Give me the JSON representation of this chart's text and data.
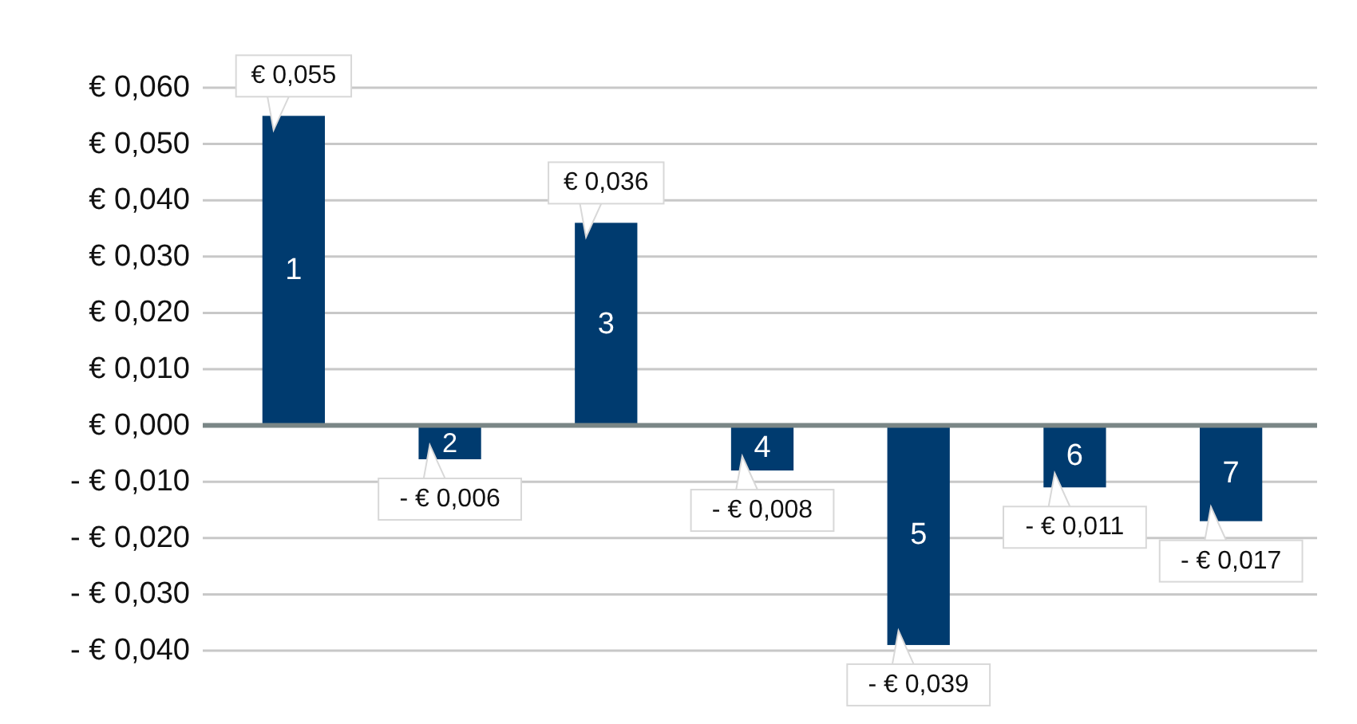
{
  "chart_data": {
    "type": "bar",
    "categories": [
      "1",
      "2",
      "3",
      "4",
      "5",
      "6",
      "7"
    ],
    "values": [
      0.055,
      -0.006,
      0.036,
      -0.008,
      -0.039,
      -0.011,
      -0.017
    ],
    "color": "#003b6f",
    "ylim": [
      -0.04,
      0.06
    ],
    "yticks": [
      {
        "value": -0.04,
        "label": "- € 0,040"
      },
      {
        "value": -0.03,
        "label": "- € 0,030"
      },
      {
        "value": -0.02,
        "label": "- € 0,020"
      },
      {
        "value": -0.01,
        "label": "- € 0,010"
      },
      {
        "value": 0,
        "label": "€ 0,000"
      },
      {
        "value": 0.01,
        "label": "€ 0,010"
      },
      {
        "value": 0.02,
        "label": "€ 0,020"
      },
      {
        "value": 0.03,
        "label": "€ 0,030"
      },
      {
        "value": 0.04,
        "label": "€ 0,040"
      },
      {
        "value": 0.05,
        "label": "€ 0,050"
      },
      {
        "value": 0.06,
        "label": "€ 0,060"
      }
    ],
    "grid": "y",
    "value_labels": [
      "€ 0,055",
      "- € 0,006",
      "€ 0,036",
      "- € 0,008",
      "- € 0,039",
      "- € 0,011",
      "- € 0,017"
    ]
  }
}
